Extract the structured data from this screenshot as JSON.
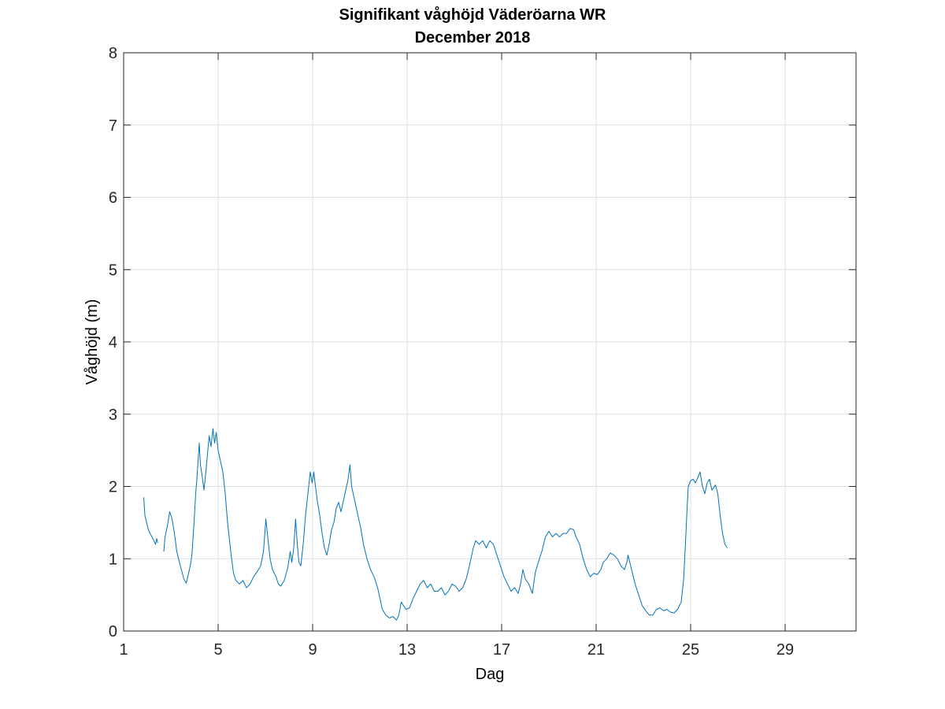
{
  "chart_data": {
    "type": "line",
    "title": "Signifikant våghöjd Väderöarna WR",
    "subtitle": "December 2018",
    "xlabel": "Dag",
    "ylabel": "Våghöjd (m)",
    "xlim": [
      1,
      32
    ],
    "ylim": [
      0,
      8
    ],
    "xticks": [
      1,
      5,
      9,
      13,
      17,
      21,
      25,
      29
    ],
    "yticks": [
      0,
      1,
      2,
      3,
      4,
      5,
      6,
      7,
      8
    ],
    "grid": true,
    "legend": "none",
    "series": [
      {
        "color": "#0072BD",
        "segments": [
          [
            [
              1.85,
              1.85
            ],
            [
              1.9,
              1.6
            ],
            [
              1.97,
              1.5
            ],
            [
              2.05,
              1.4
            ],
            [
              2.12,
              1.35
            ],
            [
              2.2,
              1.3
            ],
            [
              2.28,
              1.25
            ],
            [
              2.35,
              1.2
            ],
            [
              2.4,
              1.28
            ],
            [
              2.44,
              1.22
            ]
          ],
          [
            [
              2.7,
              1.1
            ],
            [
              2.75,
              1.3
            ],
            [
              2.85,
              1.45
            ],
            [
              2.95,
              1.65
            ],
            [
              3.05,
              1.55
            ],
            [
              3.15,
              1.35
            ],
            [
              3.25,
              1.1
            ],
            [
              3.4,
              0.9
            ],
            [
              3.55,
              0.72
            ],
            [
              3.65,
              0.66
            ],
            [
              3.75,
              0.8
            ],
            [
              3.85,
              0.95
            ],
            [
              3.9,
              1.1
            ],
            [
              3.98,
              1.5
            ],
            [
              4.05,
              1.9
            ],
            [
              4.1,
              2.1
            ],
            [
              4.15,
              2.35
            ],
            [
              4.2,
              2.6
            ],
            [
              4.25,
              2.3
            ],
            [
              4.32,
              2.15
            ],
            [
              4.4,
              1.95
            ],
            [
              4.48,
              2.2
            ],
            [
              4.55,
              2.45
            ],
            [
              4.62,
              2.7
            ],
            [
              4.7,
              2.55
            ],
            [
              4.78,
              2.8
            ],
            [
              4.85,
              2.6
            ],
            [
              4.92,
              2.75
            ],
            [
              5.0,
              2.5
            ],
            [
              5.1,
              2.35
            ],
            [
              5.2,
              2.2
            ],
            [
              5.3,
              1.9
            ],
            [
              5.4,
              1.5
            ],
            [
              5.55,
              1.05
            ],
            [
              5.65,
              0.8
            ],
            [
              5.75,
              0.7
            ],
            [
              5.9,
              0.65
            ],
            [
              6.05,
              0.7
            ],
            [
              6.2,
              0.6
            ],
            [
              6.35,
              0.65
            ],
            [
              6.5,
              0.75
            ],
            [
              6.65,
              0.82
            ],
            [
              6.8,
              0.9
            ],
            [
              6.92,
              1.1
            ],
            [
              7.02,
              1.55
            ],
            [
              7.1,
              1.3
            ],
            [
              7.2,
              1.0
            ],
            [
              7.3,
              0.85
            ],
            [
              7.45,
              0.75
            ],
            [
              7.55,
              0.65
            ],
            [
              7.65,
              0.62
            ],
            [
              7.8,
              0.7
            ],
            [
              7.95,
              0.88
            ],
            [
              8.05,
              1.1
            ],
            [
              8.12,
              0.95
            ],
            [
              8.2,
              1.15
            ],
            [
              8.28,
              1.55
            ],
            [
              8.35,
              1.2
            ],
            [
              8.42,
              0.95
            ],
            [
              8.5,
              0.9
            ],
            [
              8.6,
              1.2
            ],
            [
              8.7,
              1.6
            ],
            [
              8.8,
              1.9
            ],
            [
              8.9,
              2.2
            ],
            [
              8.98,
              2.05
            ],
            [
              9.05,
              2.2
            ],
            [
              9.12,
              2.0
            ],
            [
              9.2,
              1.8
            ],
            [
              9.3,
              1.6
            ],
            [
              9.4,
              1.35
            ],
            [
              9.5,
              1.15
            ],
            [
              9.6,
              1.05
            ],
            [
              9.7,
              1.2
            ],
            [
              9.8,
              1.4
            ],
            [
              9.9,
              1.5
            ],
            [
              10.0,
              1.7
            ],
            [
              10.1,
              1.78
            ],
            [
              10.2,
              1.65
            ],
            [
              10.3,
              1.8
            ],
            [
              10.4,
              1.95
            ],
            [
              10.5,
              2.1
            ],
            [
              10.58,
              2.3
            ],
            [
              10.65,
              2.0
            ],
            [
              10.75,
              1.85
            ],
            [
              10.85,
              1.7
            ],
            [
              10.95,
              1.55
            ],
            [
              11.05,
              1.4
            ],
            [
              11.15,
              1.2
            ],
            [
              11.3,
              1.0
            ],
            [
              11.45,
              0.85
            ],
            [
              11.6,
              0.75
            ],
            [
              11.75,
              0.6
            ],
            [
              11.85,
              0.45
            ],
            [
              11.95,
              0.3
            ],
            [
              12.1,
              0.22
            ],
            [
              12.25,
              0.18
            ],
            [
              12.4,
              0.2
            ],
            [
              12.55,
              0.15
            ],
            [
              12.65,
              0.22
            ],
            [
              12.75,
              0.4
            ],
            [
              12.85,
              0.35
            ],
            [
              12.95,
              0.3
            ],
            [
              13.1,
              0.32
            ],
            [
              13.25,
              0.45
            ],
            [
              13.4,
              0.55
            ],
            [
              13.55,
              0.65
            ],
            [
              13.7,
              0.7
            ],
            [
              13.85,
              0.6
            ],
            [
              14.0,
              0.65
            ],
            [
              14.15,
              0.55
            ],
            [
              14.3,
              0.55
            ],
            [
              14.45,
              0.6
            ],
            [
              14.6,
              0.5
            ],
            [
              14.75,
              0.55
            ],
            [
              14.9,
              0.65
            ],
            [
              15.05,
              0.62
            ],
            [
              15.2,
              0.55
            ],
            [
              15.35,
              0.6
            ],
            [
              15.5,
              0.72
            ],
            [
              15.6,
              0.85
            ],
            [
              15.7,
              1.0
            ],
            [
              15.8,
              1.15
            ],
            [
              15.9,
              1.25
            ],
            [
              16.05,
              1.2
            ],
            [
              16.2,
              1.25
            ],
            [
              16.35,
              1.15
            ],
            [
              16.5,
              1.25
            ],
            [
              16.65,
              1.2
            ],
            [
              16.8,
              1.05
            ],
            [
              16.95,
              0.9
            ],
            [
              17.1,
              0.75
            ],
            [
              17.25,
              0.65
            ],
            [
              17.4,
              0.55
            ],
            [
              17.55,
              0.6
            ],
            [
              17.7,
              0.52
            ],
            [
              17.8,
              0.65
            ],
            [
              17.9,
              0.85
            ],
            [
              18.0,
              0.72
            ],
            [
              18.15,
              0.65
            ],
            [
              18.3,
              0.52
            ],
            [
              18.42,
              0.8
            ],
            [
              18.55,
              0.95
            ],
            [
              18.7,
              1.1
            ],
            [
              18.85,
              1.3
            ],
            [
              19.0,
              1.38
            ],
            [
              19.15,
              1.3
            ],
            [
              19.3,
              1.35
            ],
            [
              19.45,
              1.3
            ],
            [
              19.6,
              1.35
            ],
            [
              19.75,
              1.35
            ],
            [
              19.9,
              1.42
            ],
            [
              20.05,
              1.4
            ],
            [
              20.15,
              1.3
            ],
            [
              20.3,
              1.2
            ],
            [
              20.45,
              1.0
            ],
            [
              20.6,
              0.85
            ],
            [
              20.75,
              0.75
            ],
            [
              20.9,
              0.8
            ],
            [
              21.05,
              0.78
            ],
            [
              21.2,
              0.85
            ],
            [
              21.3,
              0.95
            ],
            [
              21.45,
              1.0
            ],
            [
              21.6,
              1.08
            ],
            [
              21.75,
              1.05
            ],
            [
              21.9,
              1.0
            ],
            [
              22.05,
              0.9
            ],
            [
              22.2,
              0.85
            ],
            [
              22.3,
              0.95
            ],
            [
              22.35,
              1.05
            ],
            [
              22.5,
              0.85
            ],
            [
              22.65,
              0.65
            ],
            [
              22.8,
              0.5
            ],
            [
              22.95,
              0.35
            ],
            [
              23.1,
              0.28
            ],
            [
              23.25,
              0.22
            ],
            [
              23.4,
              0.22
            ],
            [
              23.55,
              0.3
            ],
            [
              23.7,
              0.32
            ],
            [
              23.85,
              0.28
            ],
            [
              24.0,
              0.3
            ],
            [
              24.15,
              0.26
            ],
            [
              24.3,
              0.25
            ],
            [
              24.45,
              0.3
            ],
            [
              24.6,
              0.4
            ],
            [
              24.7,
              0.7
            ],
            [
              24.78,
              1.2
            ],
            [
              24.85,
              1.7
            ],
            [
              24.9,
              2.0
            ],
            [
              25.0,
              2.08
            ],
            [
              25.1,
              2.1
            ],
            [
              25.2,
              2.05
            ],
            [
              25.3,
              2.12
            ],
            [
              25.4,
              2.2
            ],
            [
              25.5,
              2.0
            ],
            [
              25.6,
              1.9
            ],
            [
              25.7,
              2.05
            ],
            [
              25.8,
              2.1
            ],
            [
              25.9,
              1.95
            ],
            [
              26.05,
              2.02
            ],
            [
              26.15,
              1.9
            ],
            [
              26.25,
              1.6
            ],
            [
              26.35,
              1.35
            ],
            [
              26.45,
              1.2
            ],
            [
              26.55,
              1.15
            ]
          ]
        ]
      }
    ]
  }
}
